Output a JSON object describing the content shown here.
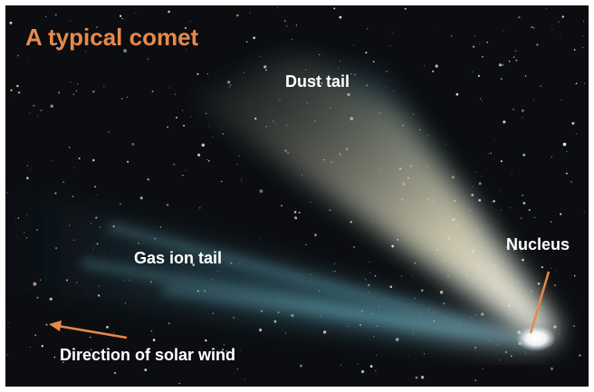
{
  "title": "A typical comet",
  "labels": {
    "dust_tail": "Dust tail",
    "gas_ion_tail": "Gas ion tail",
    "nucleus": "Nucleus",
    "solar_wind": "Direction of solar wind"
  }
}
